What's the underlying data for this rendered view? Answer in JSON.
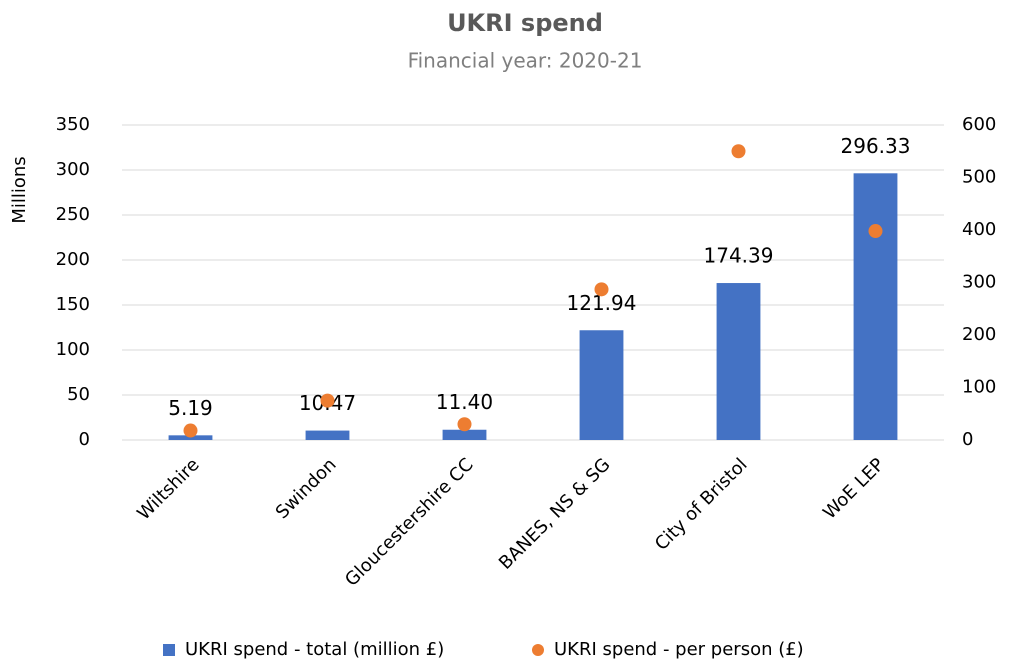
{
  "chart_data": {
    "type": "bar",
    "title": "UKRI spend",
    "subtitle": "Financial year: 2020-21",
    "y_label": "Millions",
    "categories": [
      "Wiltshire",
      "Swindon",
      "Gloucestershire CC",
      "BANES, NS & SG",
      "City of Bristol",
      "WoE LEP"
    ],
    "series": [
      {
        "name": "UKRI spend - total (million £)",
        "type": "bar",
        "color": "#4472c4",
        "values": [
          5.19,
          10.47,
          11.4,
          121.94,
          174.39,
          296.33
        ],
        "value_labels": [
          "5.19",
          "10.47",
          "11.40",
          "121.94",
          "174.39",
          "296.33"
        ]
      },
      {
        "name": "UKRI spend - per person (£)",
        "type": "scatter",
        "axis": "y2",
        "color": "#ed7d31",
        "values": [
          18,
          75,
          30,
          287,
          550,
          398
        ]
      }
    ],
    "ylim": [
      0,
      350
    ],
    "yticks": [
      0,
      50,
      100,
      150,
      200,
      250,
      300,
      350
    ],
    "y2lim": [
      0,
      600
    ],
    "y2ticks": [
      0,
      100,
      200,
      300,
      400,
      500,
      600
    ],
    "grid": true,
    "legend": "bottom"
  }
}
